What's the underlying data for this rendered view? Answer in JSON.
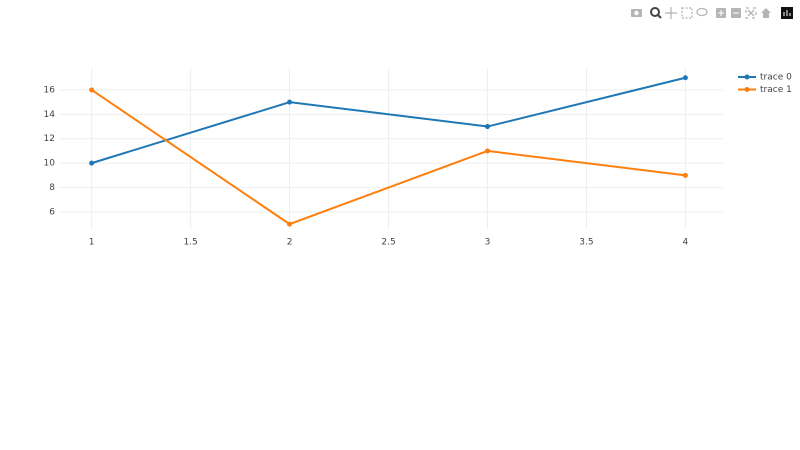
{
  "chart_data": {
    "type": "line",
    "x": [
      1,
      2,
      3,
      4
    ],
    "series": [
      {
        "name": "trace 0",
        "color": "#1f77b4",
        "values": [
          10,
          15,
          13,
          17
        ]
      },
      {
        "name": "trace 1",
        "color": "#ff7f0e",
        "values": [
          16,
          5,
          11,
          9
        ]
      }
    ],
    "xlim": [
      0.84,
      4.19
    ],
    "ylim": [
      4.6,
      17.8
    ],
    "xticks": [
      1,
      1.5,
      2,
      2.5,
      3,
      3.5,
      4
    ],
    "yticks": [
      6,
      8,
      10,
      12,
      14,
      16
    ],
    "grid": true,
    "markers": true,
    "legend": "top-right"
  }
}
